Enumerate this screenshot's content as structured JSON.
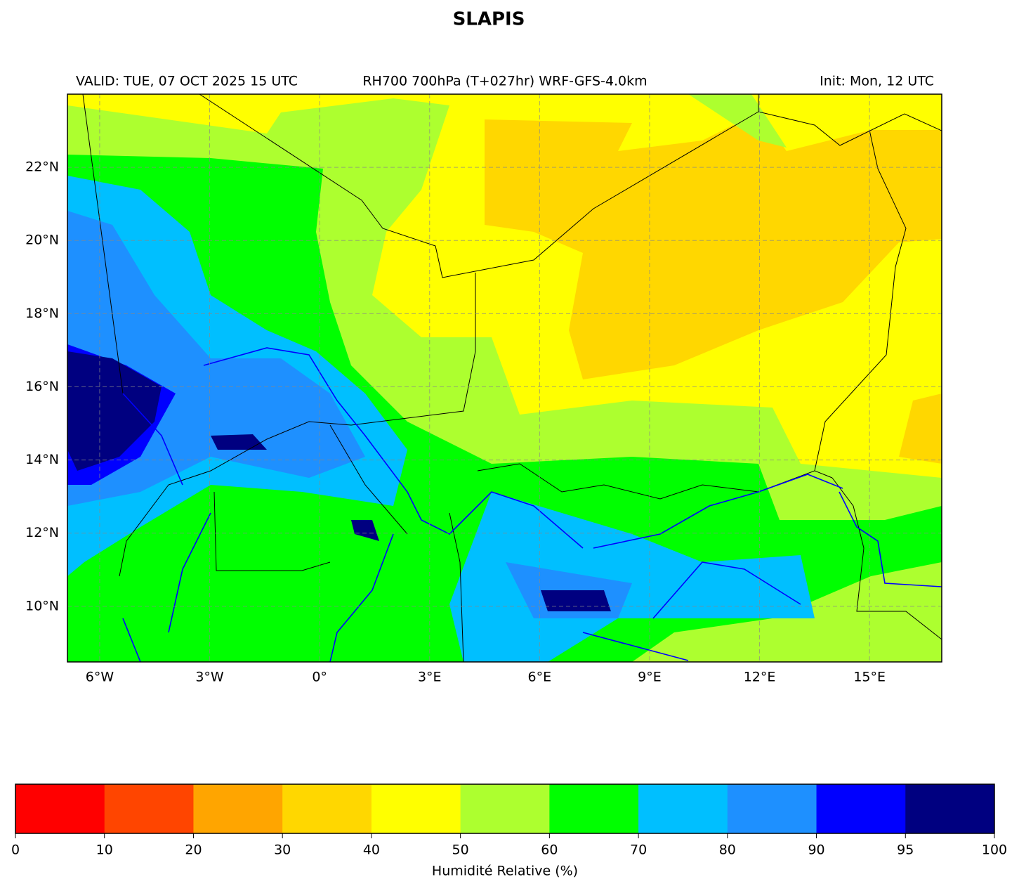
{
  "chart_data": {
    "type": "map",
    "title": "SLAPIS",
    "subtitle_left": "VALID: TUE, 07 OCT 2025 15 UTC",
    "subtitle_center": "RH700 700hPa (T+027hr) WRF-GFS-4.0km",
    "subtitle_right": "Init: Mon, 12 UTC",
    "xlim": [
      -6.88,
      16.97
    ],
    "ylim": [
      8.48,
      24.0
    ],
    "xticks": [
      {
        "value": -6,
        "label": "6°W"
      },
      {
        "value": -3,
        "label": "3°W"
      },
      {
        "value": 0,
        "label": "0°"
      },
      {
        "value": 3,
        "label": "3°E"
      },
      {
        "value": 6,
        "label": "6°E"
      },
      {
        "value": 9,
        "label": "9°E"
      },
      {
        "value": 12,
        "label": "12°E"
      },
      {
        "value": 15,
        "label": "15°E"
      }
    ],
    "yticks": [
      {
        "value": 10,
        "label": "10°N"
      },
      {
        "value": 12,
        "label": "12°N"
      },
      {
        "value": 14,
        "label": "14°N"
      },
      {
        "value": 16,
        "label": "16°N"
      },
      {
        "value": 18,
        "label": "18°N"
      },
      {
        "value": 20,
        "label": "20°N"
      },
      {
        "value": 22,
        "label": "22°N"
      }
    ],
    "grid": true,
    "colorbar": {
      "label": "Humidité Relative (%)",
      "bounds": [
        0,
        10,
        20,
        30,
        40,
        50,
        60,
        70,
        80,
        90,
        95,
        100
      ],
      "colors": [
        "#ff0000",
        "#ff4500",
        "#ffa500",
        "#ffd700",
        "#ffff00",
        "#adff2f",
        "#00ff00",
        "#00bfff",
        "#1e90ff",
        "#0000ff",
        "#000080"
      ]
    }
  }
}
